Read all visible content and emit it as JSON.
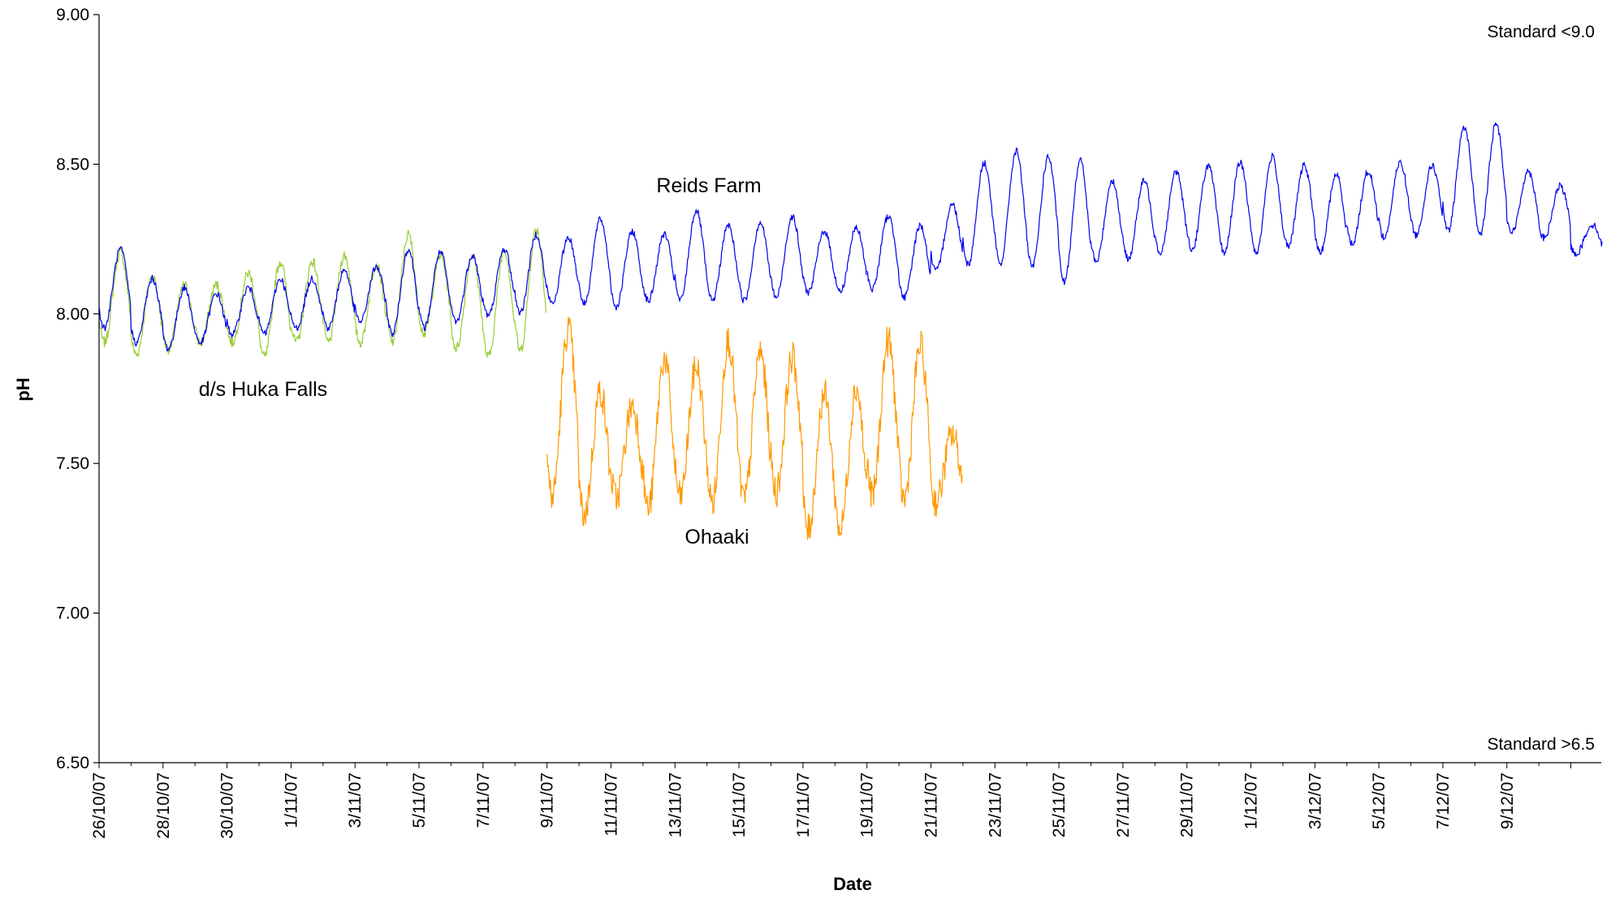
{
  "chart_data": {
    "type": "line",
    "xlabel": "Date",
    "ylabel": "pH",
    "ylim": [
      6.5,
      9.0
    ],
    "yticks": [
      "6.50",
      "7.00",
      "7.50",
      "8.00",
      "8.50",
      "9.00"
    ],
    "x_range": [
      "2007-10-26",
      "2007-12-11"
    ],
    "xtick_labels": [
      "26/10/07",
      "28/10/07",
      "30/10/07",
      "1/11/07",
      "3/11/07",
      "5/11/07",
      "7/11/07",
      "9/11/07",
      "11/11/07",
      "13/11/07",
      "15/11/07",
      "17/11/07",
      "19/11/07",
      "21/11/07",
      "23/11/07",
      "25/11/07",
      "27/11/07",
      "29/11/07",
      "1/12/07",
      "3/12/07",
      "5/12/07",
      "7/12/07",
      "9/12/07"
    ],
    "grid": false,
    "legend": "none",
    "annotations": {
      "reids": "Reids Farm",
      "huka": "d/s Huka Falls",
      "ohaaki": "Ohaaki",
      "standard_upper": "Standard <9.0",
      "standard_lower": "Standard >6.5"
    },
    "series": [
      {
        "name": "Reids Farm",
        "color": "#0000ee",
        "segments": [
          {
            "x": [
              "2007-10-26",
              "2007-10-27",
              "2007-10-28",
              "2007-10-29",
              "2007-10-30",
              "2007-10-31",
              "2007-11-01",
              "2007-11-02",
              "2007-11-03",
              "2007-11-04",
              "2007-11-05",
              "2007-11-06",
              "2007-11-07",
              "2007-11-08",
              "2007-11-09",
              "2007-11-10",
              "2007-11-11",
              "2007-11-12",
              "2007-11-13",
              "2007-11-14",
              "2007-11-15",
              "2007-11-16",
              "2007-11-17",
              "2007-11-18"
            ],
            "daily_max": [
              8.22,
              8.12,
              8.09,
              8.07,
              8.09,
              8.12,
              8.12,
              8.15,
              8.16,
              8.22,
              8.21,
              8.2,
              8.22,
              8.27,
              8.26,
              8.32,
              8.28,
              8.27,
              8.35,
              8.3,
              8.31,
              8.33,
              8.28,
              8.29
            ],
            "daily_min": [
              7.95,
              7.9,
              7.88,
              7.9,
              7.93,
              7.93,
              7.95,
              7.95,
              7.97,
              7.93,
              7.95,
              7.97,
              7.99,
              8.0,
              8.03,
              8.03,
              8.02,
              8.04,
              8.04,
              8.04,
              8.04,
              8.05,
              8.07,
              8.07
            ]
          },
          {
            "x": [
              "2007-11-19",
              "2007-11-20",
              "2007-11-21",
              "2007-11-22",
              "2007-11-23",
              "2007-11-24",
              "2007-11-25",
              "2007-11-26",
              "2007-11-27",
              "2007-11-28",
              "2007-11-29",
              "2007-11-30",
              "2007-12-01",
              "2007-12-02",
              "2007-12-03",
              "2007-12-04",
              "2007-12-05",
              "2007-12-06",
              "2007-12-07",
              "2007-12-08",
              "2007-12-09",
              "2007-12-10",
              "2007-12-11"
            ],
            "daily_max": [
              8.33,
              8.3,
              8.37,
              8.51,
              8.55,
              8.53,
              8.52,
              8.45,
              8.45,
              8.48,
              8.5,
              8.51,
              8.53,
              8.5,
              8.47,
              8.48,
              8.51,
              8.5,
              8.63,
              8.64,
              8.48,
              8.43,
              8.3
            ],
            "daily_min": [
              8.08,
              8.05,
              8.14,
              8.16,
              8.16,
              8.15,
              8.1,
              8.17,
              8.18,
              8.2,
              8.21,
              8.2,
              8.2,
              8.22,
              8.2,
              8.23,
              8.25,
              8.26,
              8.27,
              8.26,
              8.27,
              8.25,
              8.2
            ]
          }
        ]
      },
      {
        "name": "d/s Huka Falls",
        "color": "#99cc33",
        "segments": [
          {
            "x": [
              "2007-10-26",
              "2007-10-27",
              "2007-10-28",
              "2007-10-29",
              "2007-10-30",
              "2007-10-31",
              "2007-11-01",
              "2007-11-02",
              "2007-11-03",
              "2007-11-04",
              "2007-11-05",
              "2007-11-06",
              "2007-11-07",
              "2007-11-08"
            ],
            "daily_max": [
              8.21,
              8.13,
              8.1,
              8.1,
              8.14,
              8.18,
              8.18,
              8.2,
              8.17,
              8.27,
              8.2,
              8.2,
              8.22,
              8.29
            ],
            "daily_min": [
              7.9,
              7.86,
              7.88,
              7.9,
              7.9,
              7.85,
              7.9,
              7.9,
              7.9,
              7.9,
              7.93,
              7.88,
              7.85,
              7.87
            ]
          }
        ]
      },
      {
        "name": "Ohaaki",
        "color": "#ff9900",
        "segments": [
          {
            "x": [
              "2007-11-09",
              "2007-11-10",
              "2007-11-11",
              "2007-11-12",
              "2007-11-13",
              "2007-11-14",
              "2007-11-15",
              "2007-11-16",
              "2007-11-17",
              "2007-11-18",
              "2007-11-19",
              "2007-11-20",
              "2007-11-21"
            ],
            "daily_max": [
              7.96,
              7.75,
              7.7,
              7.86,
              7.83,
              7.92,
              7.88,
              7.86,
              7.74,
              7.76,
              7.92,
              7.9,
              7.6
            ],
            "daily_min": [
              7.38,
              7.32,
              7.38,
              7.34,
              7.38,
              7.36,
              7.37,
              7.4,
              7.27,
              7.27,
              7.38,
              7.37,
              7.37
            ]
          }
        ]
      }
    ]
  }
}
